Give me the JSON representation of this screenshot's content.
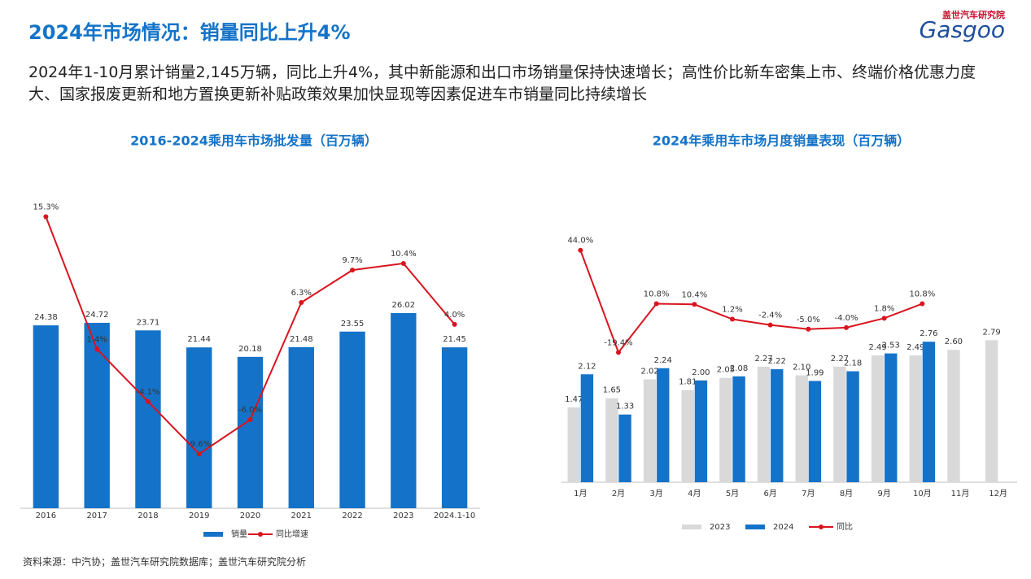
{
  "title": "2024年市场情况：销量同比上升4%",
  "description": "2024年1-10月累计销量2,145万辆，同比上升4%，其中新能源和出口市场销量保持快速增长；高性价比新车密集上市、终端价格优惠力度大、国家报废更新和地方置换更新补贴政策效果加快显现等因素促进车市销量同比持续增长",
  "logo": {
    "cn": "盖世汽车研究院",
    "en": "Gasgoo"
  },
  "source": "资料来源：中汽协；盖世汽车研究院数据库；盖世汽车研究院分析",
  "chart_data": [
    {
      "type": "bar",
      "title": "2016-2024乘用车市场批发量（百万辆）",
      "categories": [
        "2016",
        "2017",
        "2018",
        "2019",
        "2020",
        "2021",
        "2022",
        "2023",
        "2024.1-10"
      ],
      "ylim": [
        0,
        40
      ],
      "y2lim": [
        -15.3,
        16.2
      ],
      "series": [
        {
          "name": "销量",
          "color": "#1473c8",
          "values": [
            24.38,
            24.72,
            23.71,
            21.44,
            20.18,
            21.48,
            23.55,
            26.02,
            21.45
          ]
        },
        {
          "name": "同比增速",
          "color": "#d9141e",
          "axis": "y2",
          "values": [
            15.3,
            1.4,
            -4.1,
            -9.6,
            -6.0,
            6.3,
            9.7,
            10.4,
            4.0
          ],
          "value_labels": [
            "15.3%",
            "1.4%",
            "-4.1%",
            "-9.6%",
            "-6.0%",
            "6.3%",
            "9.7%",
            "10.4%",
            "4.0%"
          ]
        }
      ]
    },
    {
      "type": "bar",
      "title": "2024年乘用车市场月度销量表现（百万辆）",
      "categories": [
        "1月",
        "2月",
        "3月",
        "4月",
        "5月",
        "6月",
        "7月",
        "8月",
        "9月",
        "10月",
        "11月",
        "12月"
      ],
      "ylim": [
        0,
        5
      ],
      "y2lim": [
        -100,
        58
      ],
      "series": [
        {
          "name": "2023",
          "color": "#d9d9d9",
          "values": [
            1.47,
            1.65,
            2.02,
            1.81,
            2.05,
            2.27,
            2.1,
            2.27,
            2.49,
            2.49,
            2.6,
            2.79
          ],
          "value_labels": [
            "1.47",
            "1.65",
            "2.02",
            "1.81",
            "2.05",
            "2.27",
            "2.10",
            "2.27",
            "2.49",
            "2.49",
            "2.60",
            "2.79"
          ]
        },
        {
          "name": "2024",
          "color": "#1473c8",
          "values": [
            2.12,
            1.33,
            2.24,
            2.0,
            2.08,
            2.22,
            1.99,
            2.18,
            2.53,
            2.76,
            null,
            null
          ],
          "value_labels": [
            "2.12",
            "1.33",
            "2.24",
            "2.00",
            "2.08",
            "2.22",
            "1.99",
            "2.18",
            "2.53",
            "2.76",
            null,
            null
          ]
        },
        {
          "name": "同比",
          "color": "#d9141e",
          "axis": "y2",
          "values": [
            44.0,
            -19.4,
            10.8,
            10.4,
            1.2,
            -2.4,
            -5.0,
            -4.0,
            1.8,
            10.8,
            null,
            null
          ],
          "value_labels": [
            "44.0%",
            "-19.4%",
            "10.8%",
            "10.4%",
            "1.2%",
            "-2.4%",
            "-5.0%",
            "-4.0%",
            "1.8%",
            "10.8%",
            null,
            null
          ]
        }
      ]
    }
  ]
}
